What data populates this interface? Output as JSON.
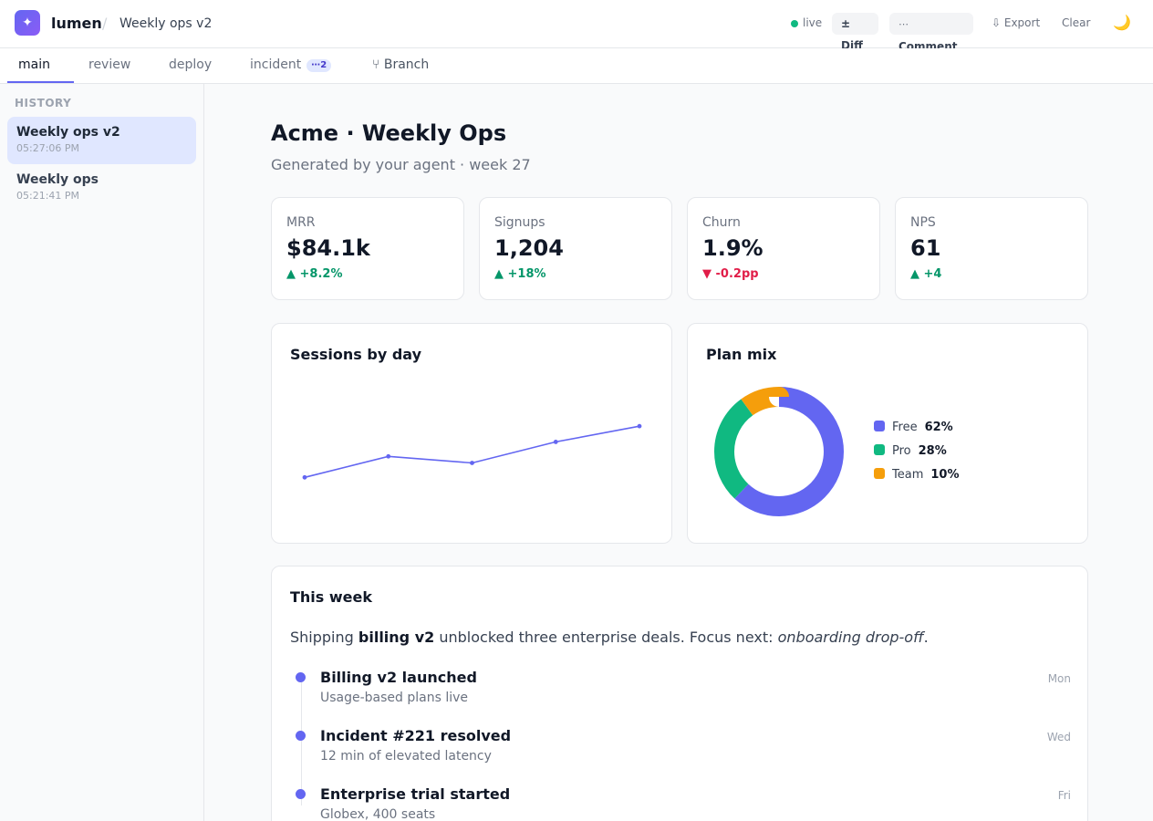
{
  "app": {
    "brand": "lumen",
    "breadcrumb": "Weekly ops v2"
  },
  "header": {
    "status": "live",
    "diff_label": "± Diff",
    "comment_label": "Comment",
    "comment_icon": "comment-icon",
    "export_label": "⇩ Export",
    "clear_label": "Clear",
    "theme_icon": "moon-icon"
  },
  "tabs": [
    {
      "label": "main",
      "active": true
    },
    {
      "label": "review"
    },
    {
      "label": "deploy"
    },
    {
      "label": "incident",
      "badge": "2"
    },
    {
      "label": "⑂ Branch"
    }
  ],
  "sidebar": {
    "heading": "HISTORY",
    "items": [
      {
        "title": "Weekly ops v2",
        "time": "05:27:06 PM",
        "active": true
      },
      {
        "title": "Weekly ops",
        "time": "05:21:41 PM"
      }
    ]
  },
  "page": {
    "title": "Acme · Weekly Ops",
    "subtitle": "Generated by your agent · week 27"
  },
  "kpis": [
    {
      "label": "MRR",
      "value": "$84.1k",
      "delta": "▲ +8.2%",
      "trend": "up"
    },
    {
      "label": "Signups",
      "value": "1,204",
      "delta": "▲ +18%",
      "trend": "up"
    },
    {
      "label": "Churn",
      "value": "1.9%",
      "delta": "▼ -0.2pp",
      "trend": "down"
    },
    {
      "label": "NPS",
      "value": "61",
      "delta": "▲ +4",
      "trend": "up"
    }
  ],
  "colors": {
    "accent": "#6366f1",
    "up": "#059669",
    "down": "#e11d48",
    "free": "#6366f1",
    "pro": "#10b981",
    "team": "#f59e0b"
  },
  "chart_data": [
    {
      "type": "line",
      "title": "Sessions by day",
      "x": [
        1,
        2,
        3,
        4,
        5
      ],
      "series": [
        {
          "values": [
            22,
            38,
            33,
            49,
            61
          ]
        }
      ],
      "ylim": [
        0,
        100
      ]
    },
    {
      "type": "pie",
      "title": "Plan mix",
      "donut": true,
      "categories": [
        "Free",
        "Pro",
        "Team"
      ],
      "values": [
        62,
        28,
        10
      ],
      "labels": [
        "62%",
        "28%",
        "10%"
      ],
      "legend_position": "right"
    }
  ],
  "week": {
    "title": "This week",
    "summary_prefix": "Shipping ",
    "summary_bold": "billing v2",
    "summary_mid": " unblocked three enterprise deals. Focus next: ",
    "summary_italic": "onboarding drop-off",
    "summary_suffix": ".",
    "events": [
      {
        "title": "Billing v2 launched",
        "detail": "Usage-based plans live",
        "day": "Mon"
      },
      {
        "title": "Incident #221 resolved",
        "detail": "12 min of elevated latency",
        "day": "Wed"
      },
      {
        "title": "Enterprise trial started",
        "detail": "Globex, 400 seats",
        "day": "Fri"
      }
    ]
  }
}
